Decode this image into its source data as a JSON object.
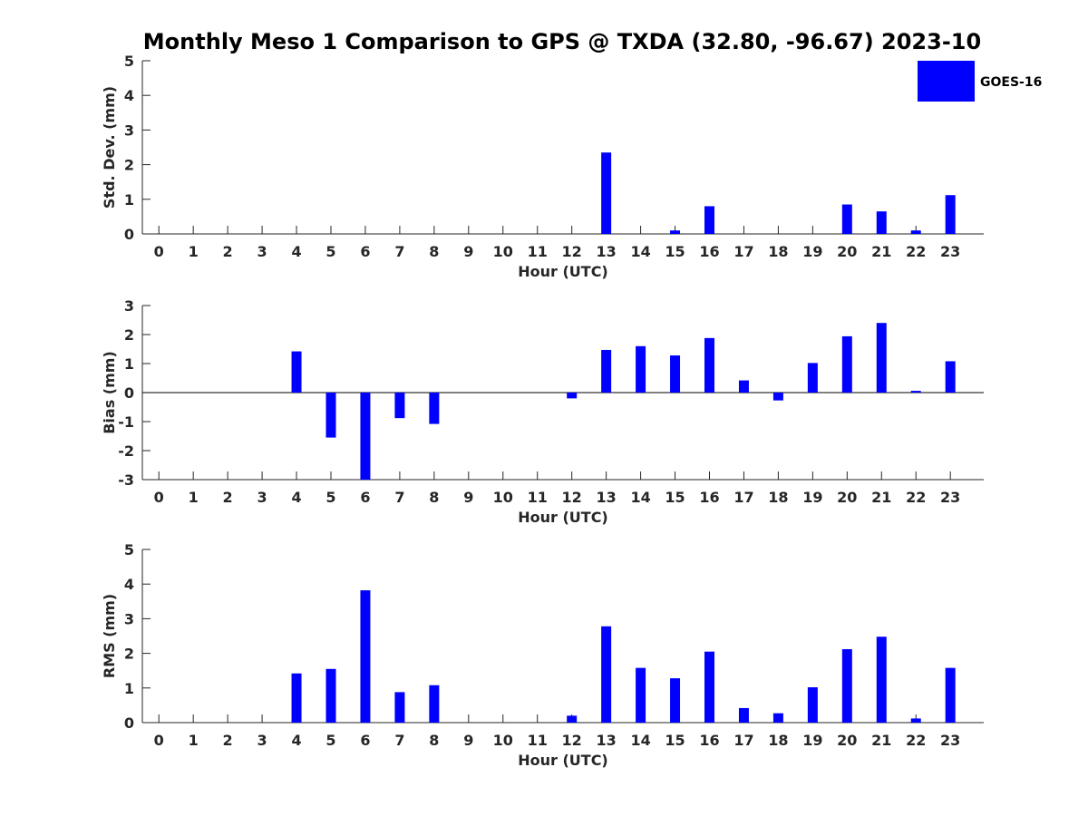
{
  "chart_data": {
    "title": "Monthly Meso 1 Comparison to GPS @ TXDA (32.80, -96.67) 2023-10",
    "legend": {
      "entries": [
        "GOES-16"
      ],
      "placement": "top-right",
      "color": "#0000ff"
    },
    "bar_color": "#0000ff",
    "subplots": [
      {
        "type": "bar",
        "ylabel": "Std. Dev. (mm)",
        "xlabel": "Hour (UTC)",
        "ylim": [
          0,
          5
        ],
        "yticks": [
          0,
          1,
          2,
          3,
          4,
          5
        ],
        "zero_line": false,
        "categories": [
          "0",
          "1",
          "2",
          "3",
          "4",
          "5",
          "6",
          "7",
          "8",
          "9",
          "10",
          "11",
          "12",
          "13",
          "14",
          "15",
          "16",
          "17",
          "18",
          "19",
          "20",
          "21",
          "22",
          "23"
        ],
        "series": [
          {
            "name": "GOES-16",
            "values": [
              null,
              null,
              null,
              null,
              0,
              0,
              0,
              0,
              0,
              null,
              null,
              null,
              0,
              2.35,
              0,
              0.1,
              0.8,
              null,
              null,
              null,
              0.85,
              0.65,
              0.1,
              1.12
            ]
          }
        ]
      },
      {
        "type": "bar",
        "ylabel": "Bias (mm)",
        "xlabel": "Hour (UTC)",
        "ylim": [
          -3,
          3
        ],
        "yticks": [
          -3,
          -2,
          -1,
          0,
          1,
          2,
          3
        ],
        "zero_line": true,
        "categories": [
          "0",
          "1",
          "2",
          "3",
          "4",
          "5",
          "6",
          "7",
          "8",
          "9",
          "10",
          "11",
          "12",
          "13",
          "14",
          "15",
          "16",
          "17",
          "18",
          "19",
          "20",
          "21",
          "22",
          "23"
        ],
        "series": [
          {
            "name": "GOES-16",
            "values": [
              null,
              null,
              null,
              null,
              1.42,
              -1.55,
              -3.0,
              -0.88,
              -1.08,
              null,
              null,
              null,
              -0.2,
              1.47,
              1.6,
              1.28,
              1.88,
              0.42,
              -0.27,
              1.02,
              1.94,
              2.4,
              0.06,
              1.08
            ]
          }
        ]
      },
      {
        "type": "bar",
        "ylabel": "RMS (mm)",
        "xlabel": "Hour (UTC)",
        "ylim": [
          0,
          5
        ],
        "yticks": [
          0,
          1,
          2,
          3,
          4,
          5
        ],
        "zero_line": false,
        "categories": [
          "0",
          "1",
          "2",
          "3",
          "4",
          "5",
          "6",
          "7",
          "8",
          "9",
          "10",
          "11",
          "12",
          "13",
          "14",
          "15",
          "16",
          "17",
          "18",
          "19",
          "20",
          "21",
          "22",
          "23"
        ],
        "series": [
          {
            "name": "GOES-16",
            "values": [
              null,
              null,
              null,
              null,
              1.42,
              1.55,
              3.82,
              0.88,
              1.08,
              null,
              null,
              null,
              0.2,
              2.78,
              1.58,
              1.28,
              2.05,
              0.42,
              0.27,
              1.02,
              2.12,
              2.48,
              0.12,
              1.58
            ]
          }
        ]
      }
    ]
  }
}
